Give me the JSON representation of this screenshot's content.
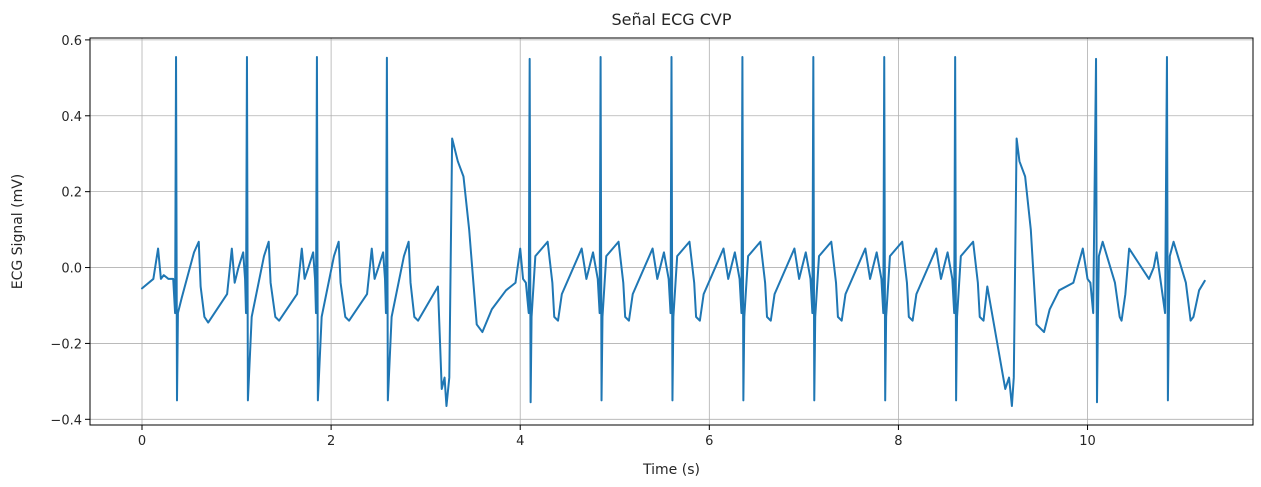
{
  "chart_data": {
    "type": "line",
    "title": "Señal ECG CVP",
    "xlabel": "Time (s)",
    "ylabel": "ECG Signal (mV)",
    "xlim": [
      -0.55,
      11.75
    ],
    "ylim": [
      -0.415,
      0.605
    ],
    "xticks": [
      0,
      2,
      4,
      6,
      8,
      10
    ],
    "xtick_labels": [
      "0",
      "2",
      "4",
      "6",
      "8",
      "10"
    ],
    "yticks": [
      -0.4,
      -0.2,
      0.0,
      0.2,
      0.4,
      0.6
    ],
    "ytick_labels": [
      "−0.4",
      "−0.2",
      "0.0",
      "0.2",
      "0.4",
      "0.6"
    ],
    "grid": true,
    "series_color": "#1f77b4",
    "series": [
      {
        "x": [
          0.0,
          0.12,
          0.17,
          0.2,
          0.23,
          0.28,
          0.33,
          0.35,
          0.36,
          0.37,
          0.38,
          0.42,
          0.55,
          0.6,
          0.62,
          0.66,
          0.7,
          0.9,
          0.95,
          0.98,
          1.02,
          1.07,
          1.09,
          1.1,
          1.11,
          1.12,
          1.16,
          1.29,
          1.34,
          1.36,
          1.41,
          1.45,
          1.64,
          1.69,
          1.72,
          1.76,
          1.81,
          1.83,
          1.84,
          1.85,
          1.86,
          1.9,
          2.03,
          2.08,
          2.1,
          2.15,
          2.19,
          2.38,
          2.43,
          2.46,
          2.5,
          2.55,
          2.57,
          2.58,
          2.59,
          2.6,
          2.64,
          2.77,
          2.82,
          2.84,
          2.88,
          2.92,
          3.13,
          3.17,
          3.2,
          3.22,
          3.25,
          3.28,
          3.34,
          3.4,
          3.46,
          3.54,
          3.6,
          3.7,
          3.85,
          3.95,
          4.0,
          4.03,
          4.06,
          4.09,
          4.1,
          4.11,
          4.12,
          4.16,
          4.29,
          4.34,
          4.36,
          4.4,
          4.44,
          4.65,
          4.7,
          4.73,
          4.77,
          4.82,
          4.84,
          4.85,
          4.86,
          4.87,
          4.91,
          5.04,
          5.09,
          5.11,
          5.15,
          5.19,
          5.4,
          5.45,
          5.48,
          5.52,
          5.57,
          5.59,
          5.6,
          5.61,
          5.62,
          5.66,
          5.79,
          5.84,
          5.86,
          5.9,
          5.94,
          6.15,
          6.2,
          6.23,
          6.27,
          6.32,
          6.34,
          6.35,
          6.36,
          6.37,
          6.41,
          6.54,
          6.59,
          6.61,
          6.65,
          6.69,
          6.9,
          6.95,
          6.98,
          7.02,
          7.07,
          7.09,
          7.1,
          7.11,
          7.12,
          7.16,
          7.29,
          7.34,
          7.36,
          7.4,
          7.44,
          7.65,
          7.7,
          7.73,
          7.77,
          7.82,
          7.84,
          7.85,
          7.86,
          7.87,
          7.91,
          8.04,
          8.09,
          8.11,
          8.15,
          8.19,
          8.4,
          8.45,
          8.48,
          8.52,
          8.57,
          8.59,
          8.6,
          8.61,
          8.62,
          8.66,
          8.79,
          8.84,
          8.86,
          8.9,
          8.94,
          9.13,
          9.17,
          9.2,
          9.22,
          9.25,
          9.28,
          9.34,
          9.4,
          9.46,
          9.54,
          9.6,
          9.7,
          9.85,
          9.95,
          10.0,
          10.03,
          10.06,
          10.09,
          10.1,
          10.11,
          10.12,
          10.16,
          10.29,
          10.34,
          10.36,
          10.4,
          10.44,
          10.65,
          10.7,
          10.73,
          10.77,
          10.82,
          10.84,
          10.85,
          10.86,
          10.87,
          10.91,
          11.04,
          11.09,
          11.12,
          11.18,
          11.24
        ],
        "y": [
          -0.055,
          -0.03,
          0.05,
          -0.03,
          -0.02,
          -0.03,
          -0.03,
          -0.12,
          0.555,
          -0.35,
          -0.12,
          -0.08,
          0.04,
          0.068,
          -0.05,
          -0.13,
          -0.145,
          -0.07,
          0.05,
          -0.04,
          0.0,
          0.04,
          -0.03,
          -0.12,
          0.555,
          -0.35,
          -0.13,
          0.03,
          0.068,
          -0.04,
          -0.13,
          -0.14,
          -0.07,
          0.05,
          -0.03,
          0.0,
          0.04,
          -0.03,
          -0.12,
          0.555,
          -0.35,
          -0.13,
          0.03,
          0.068,
          -0.04,
          -0.13,
          -0.14,
          -0.07,
          0.05,
          -0.03,
          0.0,
          0.04,
          -0.03,
          -0.12,
          0.553,
          -0.35,
          -0.13,
          0.03,
          0.068,
          -0.04,
          -0.13,
          -0.14,
          -0.05,
          -0.32,
          -0.29,
          -0.365,
          -0.29,
          0.34,
          0.28,
          0.24,
          0.1,
          -0.15,
          -0.17,
          -0.11,
          -0.06,
          -0.04,
          0.05,
          -0.03,
          -0.04,
          -0.12,
          0.55,
          -0.355,
          -0.13,
          0.03,
          0.068,
          -0.04,
          -0.13,
          -0.14,
          -0.07,
          0.05,
          -0.03,
          0.0,
          0.04,
          -0.03,
          -0.12,
          0.555,
          -0.35,
          -0.13,
          0.03,
          0.068,
          -0.04,
          -0.13,
          -0.14,
          -0.07,
          0.05,
          -0.03,
          0.0,
          0.04,
          -0.03,
          -0.12,
          0.555,
          -0.35,
          -0.13,
          0.03,
          0.068,
          -0.04,
          -0.13,
          -0.14,
          -0.07,
          0.05,
          -0.03,
          0.0,
          0.04,
          -0.03,
          -0.12,
          0.555,
          -0.35,
          -0.13,
          0.03,
          0.068,
          -0.04,
          -0.13,
          -0.14,
          -0.07,
          0.05,
          -0.03,
          0.0,
          0.04,
          -0.03,
          -0.12,
          0.555,
          -0.35,
          -0.13,
          0.03,
          0.068,
          -0.04,
          -0.13,
          -0.14,
          -0.07,
          0.05,
          -0.03,
          0.0,
          0.04,
          -0.03,
          -0.12,
          0.555,
          -0.35,
          -0.13,
          0.03,
          0.068,
          -0.04,
          -0.13,
          -0.14,
          -0.07,
          0.05,
          -0.03,
          0.0,
          0.04,
          -0.03,
          -0.12,
          0.555,
          -0.35,
          -0.13,
          0.03,
          0.068,
          -0.04,
          -0.13,
          -0.14,
          -0.05,
          -0.32,
          -0.29,
          -0.365,
          -0.29,
          0.34,
          0.28,
          0.24,
          0.1,
          -0.15,
          -0.17,
          -0.11,
          -0.06,
          -0.04,
          0.05,
          -0.03,
          -0.04,
          -0.12,
          0.55,
          -0.355,
          -0.13,
          0.03,
          0.068,
          -0.04,
          -0.13,
          -0.14,
          -0.07,
          0.05,
          -0.03,
          0.0,
          0.04,
          -0.03,
          -0.12,
          0.555,
          -0.35,
          -0.13,
          0.03,
          0.068,
          -0.04,
          -0.14,
          -0.13,
          -0.06,
          -0.035
        ]
      }
    ]
  }
}
